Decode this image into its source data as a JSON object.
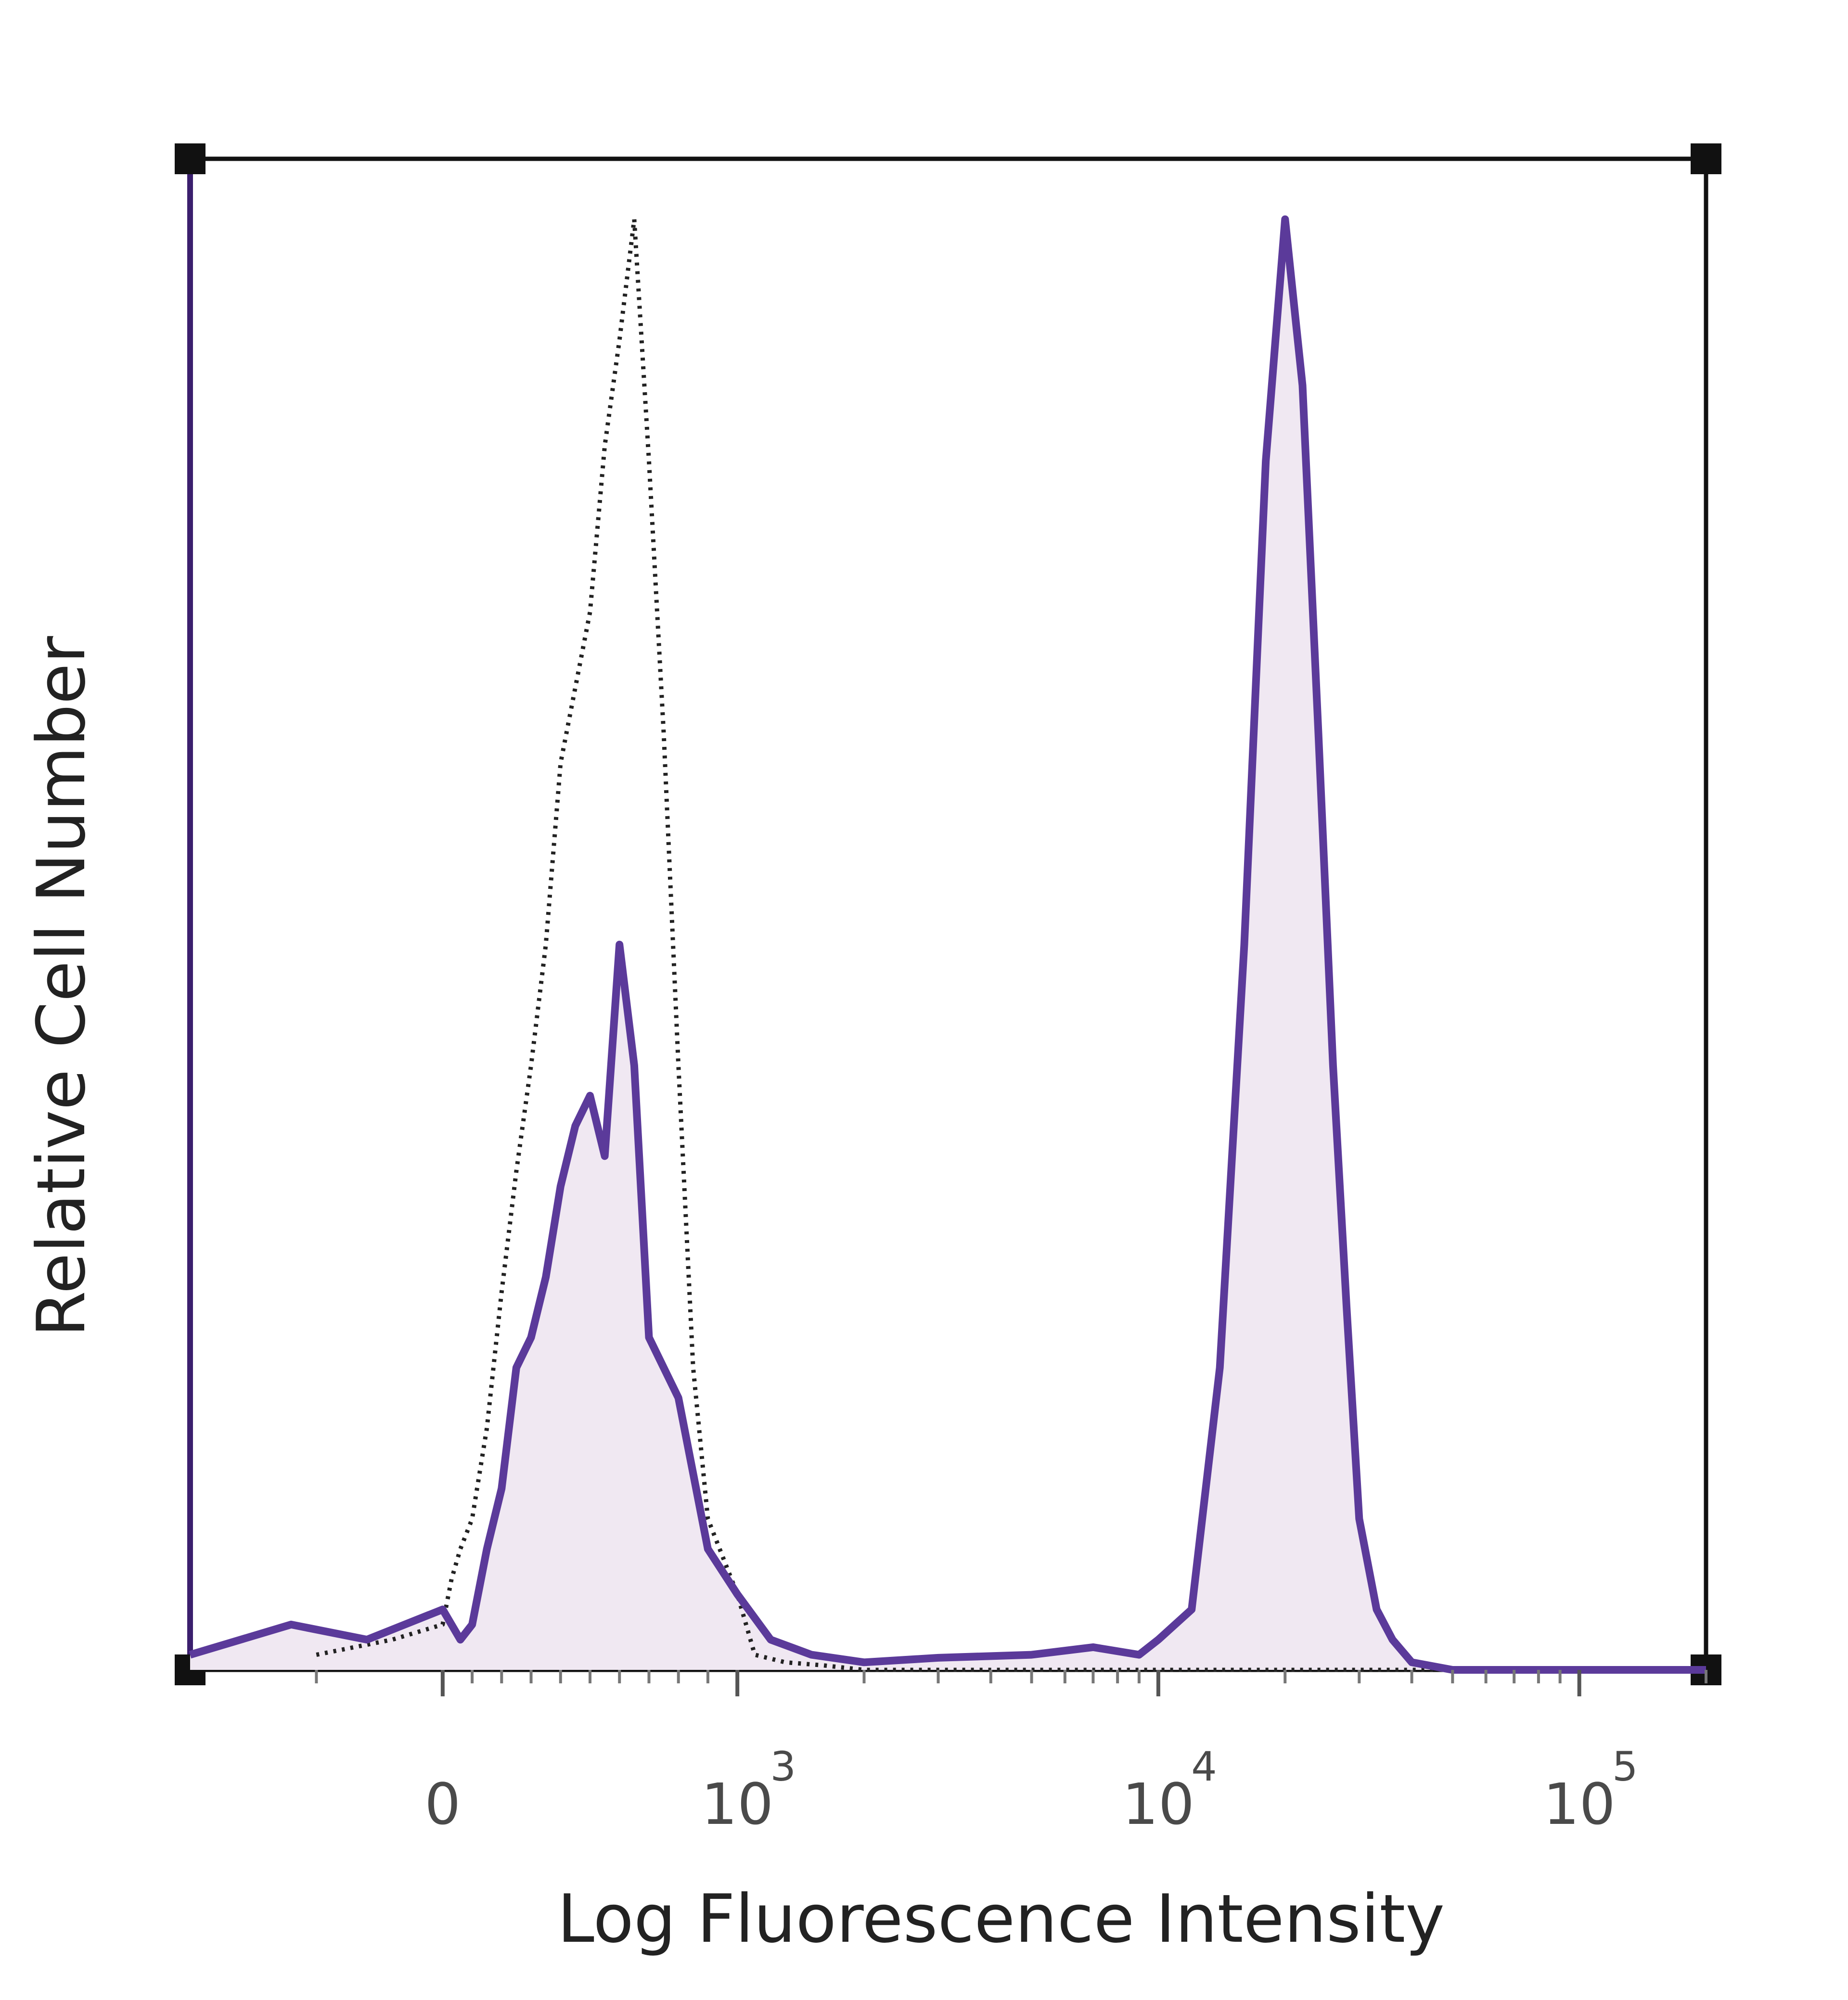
{
  "chart_data": {
    "type": "area",
    "title": "",
    "xlabel": "Log Fluorescence Intensity",
    "ylabel": "Relative Cell Number",
    "x_scale": "biexponential",
    "xlim": [
      -200,
      200000
    ],
    "ylim": [
      0,
      100
    ],
    "grid": false,
    "legend": "none",
    "x_ticks": [
      {
        "value": 0,
        "label": "0",
        "exponent": ""
      },
      {
        "value": 1000,
        "label": "10",
        "exponent": "3"
      },
      {
        "value": 10000,
        "label": "10",
        "exponent": "4"
      },
      {
        "value": 100000,
        "label": "10",
        "exponent": "5"
      }
    ],
    "colors": {
      "stained": "#5b3a9a",
      "stained_fill": "#f0e8f2",
      "control": "#222222",
      "frame": "#111111",
      "left_axis": "#3b1f6e"
    },
    "series": [
      {
        "style": "dotted",
        "color": "#222222",
        "x": [
          -100,
          -40,
          0,
          30,
          60,
          100,
          150,
          200,
          250,
          300,
          350,
          400,
          450,
          500,
          550,
          600,
          650,
          700,
          750,
          800,
          850,
          900,
          1000,
          1100,
          1300,
          1600,
          2000,
          3000,
          5000,
          8000,
          10000,
          20000,
          50000,
          100000,
          200000
        ],
        "y": [
          1,
          2,
          3,
          6,
          8,
          10,
          16,
          25,
          33,
          40,
          48,
          60,
          65,
          70,
          81,
          88,
          96,
          80,
          62,
          40,
          20,
          10,
          5,
          1,
          0.5,
          0.3,
          0,
          0,
          0,
          0,
          0,
          0,
          0,
          0,
          0
        ]
      },
      {
        "style": "solid",
        "color": "#5b3a9a",
        "fill": "#f0e8f2",
        "x": [
          -200,
          -120,
          -60,
          0,
          30,
          60,
          100,
          150,
          200,
          250,
          300,
          350,
          400,
          450,
          500,
          550,
          600,
          650,
          700,
          750,
          800,
          900,
          1000,
          1200,
          1500,
          2000,
          3000,
          5000,
          7000,
          9000,
          10000,
          12000,
          14000,
          16000,
          18000,
          20000,
          22000,
          24000,
          26000,
          28000,
          30000,
          33000,
          36000,
          40000,
          50000,
          100000,
          200000
        ],
        "y": [
          1,
          3,
          2,
          4,
          3,
          2,
          3,
          8,
          12,
          20,
          22,
          26,
          32,
          36,
          38,
          34,
          48,
          40,
          22,
          20,
          18,
          8,
          5,
          2,
          1,
          0.5,
          0.8,
          1,
          1.5,
          1,
          2,
          4,
          20,
          48,
          80,
          96,
          85,
          62,
          40,
          24,
          10,
          4,
          2,
          0.5,
          0,
          0,
          0
        ]
      }
    ]
  }
}
